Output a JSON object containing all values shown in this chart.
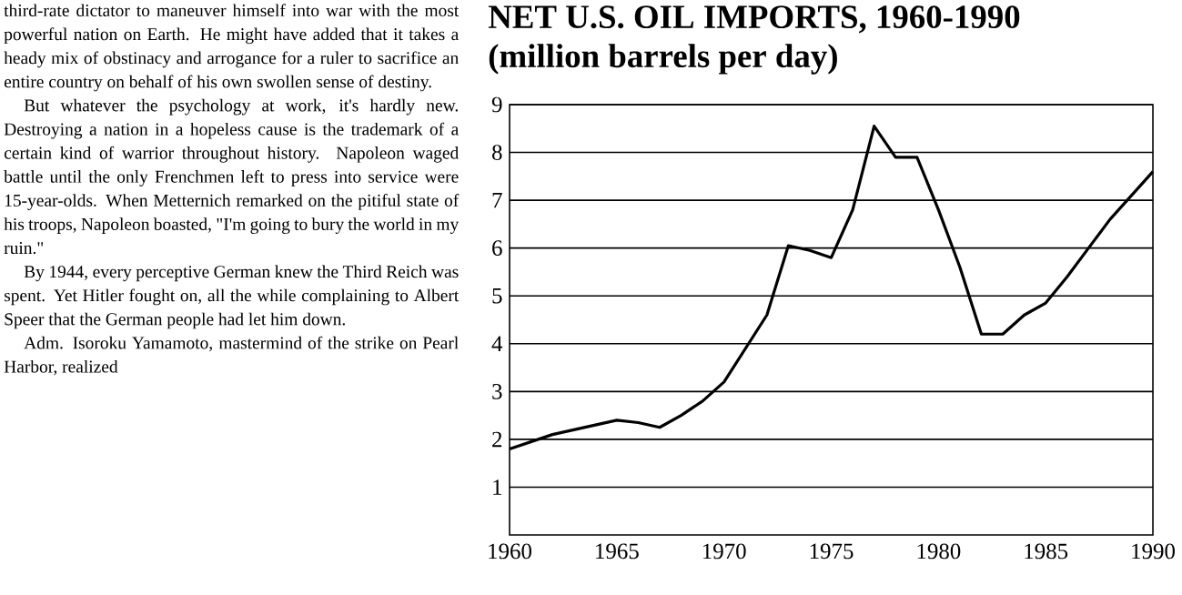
{
  "chart_data": {
    "type": "line",
    "title": "NET U.S. OIL IMPORTS, 1960-1990",
    "subtitle": "(million barrels per day)",
    "annotations": [
      "third-rate dictator to maneuver himself into war with the most powerful nation on Earth. He might have added that it takes a heady mix of obstinacy and arrogance for a ruler to sacrifice an entire country on behalf of his own swollen sense of destiny.",
      "But whatever the psychology at work, it's hardly new. Destroying a nation in a hopeless cause is the trademark of a certain kind of warrior throughout history. Napoleon waged battle until the only Frenchmen left to press into service were 15-year-olds. When Metternich remarked on the pitiful state of his troops, Napoleon boasted, \"I'm going to bury the world in my ruin.\"",
      "By 1944, every perceptive German knew the Third Reich was spent. Yet Hitler fought on, all the while complaining to Albert Speer that the German people had let him down.",
      "Adm. Isoroku Yamamoto, mastermind of the strike on Pearl Harbor, realized"
    ],
    "x": [
      1960,
      1961,
      1962,
      1963,
      1964,
      1965,
      1966,
      1967,
      1968,
      1969,
      1970,
      1971,
      1972,
      1973,
      1974,
      1975,
      1976,
      1977,
      1978,
      1979,
      1980,
      1981,
      1982,
      1983,
      1984,
      1985,
      1986,
      1987,
      1988,
      1989,
      1990
    ],
    "values": [
      1.8,
      1.95,
      2.1,
      2.2,
      2.3,
      2.4,
      2.35,
      2.25,
      2.5,
      2.8,
      3.2,
      3.9,
      4.6,
      6.05,
      5.95,
      5.8,
      6.8,
      8.55,
      7.9,
      7.9,
      6.8,
      5.6,
      4.2,
      4.2,
      4.6,
      4.85,
      5.4,
      6.0,
      6.6,
      7.1,
      7.6
    ],
    "color": "#000000",
    "xlim": [
      1960,
      1990
    ],
    "ylim": [
      0,
      9
    ],
    "xticks": [
      1960,
      1965,
      1970,
      1975,
      1980,
      1985,
      1990
    ],
    "yticks": [
      1,
      2,
      3,
      4,
      5,
      6,
      7,
      8,
      9
    ],
    "grid": "y",
    "marker": "none",
    "line_style": "solid"
  }
}
